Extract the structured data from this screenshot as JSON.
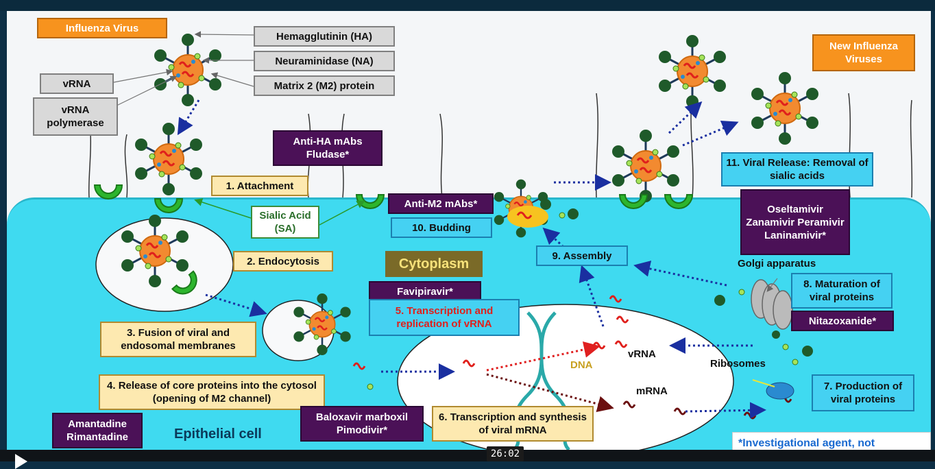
{
  "boxes": {
    "influenza_virus": "Influenza Virus",
    "new_viruses": "New Influenza Viruses",
    "ha": "Hemagglutinin (HA)",
    "na": "Neuraminidase (NA)",
    "m2": "Matrix 2 (M2) protein",
    "vrna": "vRNA",
    "vrna_polymerase": "vRNA polymerase",
    "anti_ha": "Anti-HA mAbs Fludase*",
    "attachment": "1. Attachment",
    "sialic": "Sialic Acid (SA)",
    "endocytosis": "2. Endocytosis",
    "fusion": "3. Fusion of viral and endosomal membranes",
    "release": "4. Release of core proteins into the cytosol (opening of M2 channel)",
    "amantadine": "Amantadine Rimantadine",
    "baloxavir": "Baloxavir marboxil Pimodivir*",
    "transcription_mrna": "6. Transcription and synthesis of viral mRNA",
    "favipiravir": "Favipiravir*",
    "transcription_vrna": "5. Transcription and replication of vRNA",
    "anti_m2": "Anti-M2 mAbs*",
    "budding": "10. Budding",
    "assembly": "9. Assembly",
    "viral_release": "11. Viral Release: Removal of sialic acids",
    "oseltamivir": "Oseltamivir Zanamivir Peramivir Laninamivir*",
    "maturation": "8. Maturation of viral proteins",
    "nitazoxanide": "Nitazoxanide*",
    "production": "7. Production of viral proteins",
    "investigational": "*Investigational agent, not approved in the United States"
  },
  "labels": {
    "cytoplasm": "Cytoplasm",
    "epithelial": "Epithelial cell",
    "golgi": "Golgi apparatus",
    "ribosomes": "Ribosomes",
    "dna": "DNA",
    "vrna_nuc": "vRNA",
    "mrna_nuc": "mRNA"
  },
  "video": {
    "timestamp": "26:02"
  },
  "colors": {
    "cell": "#3fdaf0",
    "purple": "#4b1157",
    "orange": "#f7931e",
    "virus_core": "#f28a30",
    "spike": "#1f5a2a",
    "sialic": "#2db52d"
  }
}
